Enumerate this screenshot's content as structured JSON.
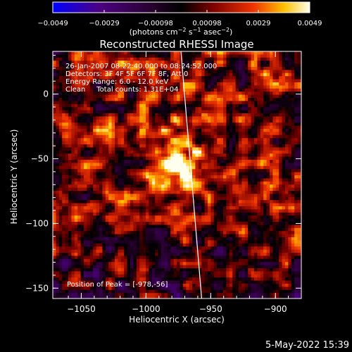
{
  "chart_data": {
    "type": "heatmap",
    "title": "Reconstructed RHESSI Image",
    "xlabel": "Heliocentric X (arcsec)",
    "ylabel": "Heliocentric Y (arcsec)",
    "xlim": [
      -1072,
      -880
    ],
    "ylim": [
      -158,
      33
    ],
    "x_ticks": [
      {
        "value": -1050,
        "label": "−1050"
      },
      {
        "value": -1000,
        "label": "−1000"
      },
      {
        "value": -950,
        "label": "−950"
      },
      {
        "value": -900,
        "label": "−900"
      }
    ],
    "y_ticks": [
      {
        "value": 0,
        "label": "0"
      },
      {
        "value": -50,
        "label": "−50"
      },
      {
        "value": -100,
        "label": "−100"
      },
      {
        "value": -150,
        "label": "−150"
      }
    ],
    "colorbar": {
      "min": -0.0049,
      "max": 0.0049,
      "ticks": [
        "−0.0049",
        "−0.0029",
        "−0.00098",
        "0.00098",
        "0.0029",
        "0.0049"
      ],
      "units_prefix": "(photons cm",
      "units_exp1": "−2",
      "units_mid": " s",
      "units_exp2": "−1",
      "units_mid2": " asec",
      "units_exp3": "−2",
      "units_suffix": ")"
    },
    "annotations": [
      "26-Jan-2007 08:22:40.000 to 08:24:52.000",
      "Detectors: 3F 4F 5F 6F 7F 8F, Att 0",
      "Energy Range: 6.0 - 12.0 keV",
      "Clean     Total counts: 1.31E+04"
    ],
    "peak_label": "Position of Peak = [-978,-56]",
    "peak": [
      -978,
      -56
    ],
    "limb_line": [
      [
        -973,
        33
      ],
      [
        -957,
        -158
      ]
    ],
    "colors": {
      "background": "#000000",
      "text": "#ffffff"
    }
  },
  "footer_date": "5-May-2022 15:39"
}
